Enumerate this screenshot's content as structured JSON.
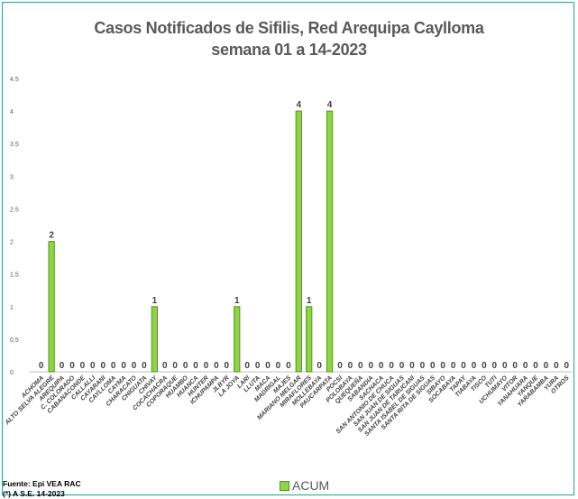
{
  "chart_data": {
    "type": "bar",
    "title": "Casos Notificados de Sifilis, Red Arequipa Caylloma",
    "subtitle": "semana 01 a 14-2023",
    "ylim": [
      0,
      4.5
    ],
    "yticks": [
      "0",
      "0.5",
      "1",
      "1.5",
      "2",
      "2.5",
      "3",
      "3.5",
      "4",
      "4.5"
    ],
    "grid": false,
    "legend_position": "bottom",
    "categories": [
      "ACHOMA",
      "ALTO SELVA ALEGRE",
      "AREQUIPA",
      "C. COLORADO",
      "CABANACONDE",
      "CALLALLI",
      "CAYARANI",
      "CAYLLOMA",
      "CAYMA",
      "CHARACATO",
      "CHIGUATA",
      "CHIVAY",
      "COCACHACRA",
      "COPORAQUE",
      "HUAMBO",
      "HUANCA",
      "HUNTER",
      "ICHUPAMPA",
      "JLBYR",
      "LA JOYA",
      "LARI",
      "LLUTA",
      "MACA",
      "MADRIGAL",
      "MAJES",
      "MARIANO MELGAR",
      "MIRAFLORES",
      "MOLLEBAYA",
      "PAUCARPATA",
      "POCSI",
      "POLOBAYA",
      "QUEQUEÑA",
      "SABANDIA",
      "SACHACA",
      "SAN ANTONIO DE CHUCA",
      "SAN JUAN DE SIGUAS",
      "SAN JUAN DE TARUCANI",
      "SANTA ISABEL DE SIGUAS",
      "SANTA RITA DE SIGUAS",
      "SIBAYO",
      "SOCABAYA",
      "TAPAY",
      "TIABAYA",
      "TISCO",
      "TUTI",
      "UCHUMAYO",
      "VITOR",
      "YANAHUARA",
      "YANQUE",
      "YARABAMBA",
      "YURA",
      "OTROS"
    ],
    "series": [
      {
        "name": "ACUM",
        "color": "#92d050",
        "values": [
          0,
          2,
          0,
          0,
          0,
          0,
          0,
          0,
          0,
          0,
          0,
          1,
          0,
          0,
          0,
          0,
          0,
          0,
          0,
          1,
          0,
          0,
          0,
          0,
          0,
          4,
          1,
          0,
          4,
          0,
          0,
          0,
          0,
          0,
          0,
          0,
          0,
          0,
          0,
          0,
          0,
          0,
          0,
          0,
          0,
          0,
          0,
          0,
          0,
          0,
          0,
          0
        ]
      }
    ]
  },
  "footer": {
    "source": "Fuente: Epi VEA RAC",
    "note": "(*) A S.E. 14-2023"
  },
  "colors": {
    "bar_fill": "#92d050",
    "bar_edge": "#4d9a10",
    "frame": "#2e9e8e",
    "text": "#595959"
  }
}
